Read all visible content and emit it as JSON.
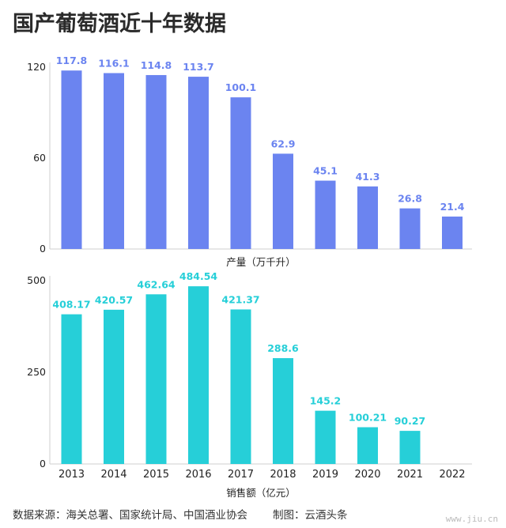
{
  "page": {
    "title": "国产葡萄酒近十年数据",
    "source": "数据来源：海关总署、国家统计局、中国酒业协会",
    "credit": "制图：云酒头条",
    "watermark": "www.jiu.cn"
  },
  "colors": {
    "production": "#6b84f0",
    "sales": "#26cfd8",
    "axis": "#cfcfcf"
  },
  "chart_data": [
    {
      "type": "bar",
      "categories": [
        "2013",
        "2014",
        "2015",
        "2016",
        "2017",
        "2018",
        "2019",
        "2020",
        "2021",
        "2022"
      ],
      "series": [
        {
          "values": [
            117.8,
            116.1,
            114.8,
            113.7,
            100.1,
            62.9,
            45.1,
            41.3,
            26.8,
            21.4
          ]
        }
      ],
      "data_labels": [
        "117.8",
        "116.1",
        "114.8",
        "113.7",
        "100.1",
        "62.9",
        "45.1",
        "41.3",
        "26.8",
        "21.4"
      ],
      "xlabel": "产量（万千升）",
      "ylim": [
        0,
        130
      ],
      "yticks": [
        0,
        60,
        120
      ],
      "grid": false
    },
    {
      "type": "bar",
      "categories": [
        "2013",
        "2014",
        "2015",
        "2016",
        "2017",
        "2018",
        "2019",
        "2020",
        "2021",
        "2022"
      ],
      "series": [
        {
          "values": [
            408.17,
            420.57,
            462.64,
            484.54,
            421.37,
            288.6,
            145.2,
            100.21,
            90.27,
            null
          ]
        }
      ],
      "data_labels": [
        "408.17",
        "420.57",
        "462.64",
        "484.54",
        "421.37",
        "288.6",
        "145.2",
        "100.21",
        "90.27",
        ""
      ],
      "xlabel": "销售额（亿元）",
      "ylim": [
        0,
        500
      ],
      "yticks": [
        0,
        250,
        500
      ],
      "grid": false
    }
  ]
}
